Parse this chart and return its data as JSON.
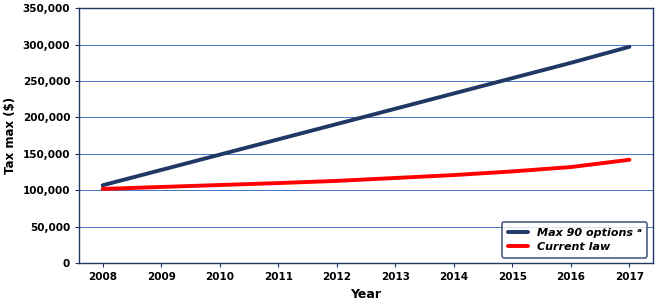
{
  "years": [
    2008,
    2009,
    2010,
    2011,
    2012,
    2013,
    2014,
    2015,
    2016,
    2017
  ],
  "max90_values": [
    107000,
    128000,
    149000,
    170000,
    191000,
    212000,
    233000,
    254000,
    275000,
    297000
  ],
  "current_law_values": [
    102000,
    104667,
    107333,
    110000,
    113000,
    117000,
    121000,
    126000,
    132000,
    142000
  ],
  "max90_color": "#1f3864",
  "current_law_color": "#ff0000",
  "xlabel": "Year",
  "ylabel": "Tax max ($)",
  "ylim": [
    0,
    350000
  ],
  "yticks": [
    0,
    50000,
    100000,
    150000,
    200000,
    250000,
    300000,
    350000
  ],
  "xlim": [
    2007.6,
    2017.4
  ],
  "xticks": [
    2008,
    2009,
    2010,
    2011,
    2012,
    2013,
    2014,
    2015,
    2016,
    2017
  ],
  "legend_label_max90": "Max 90 options ᵃ",
  "legend_label_current": "Current law",
  "line_width": 2.8,
  "background_color": "#ffffff",
  "grid_color": "#4472c4",
  "legend_border_color": "#1f3864",
  "spine_color": "#1f3864"
}
